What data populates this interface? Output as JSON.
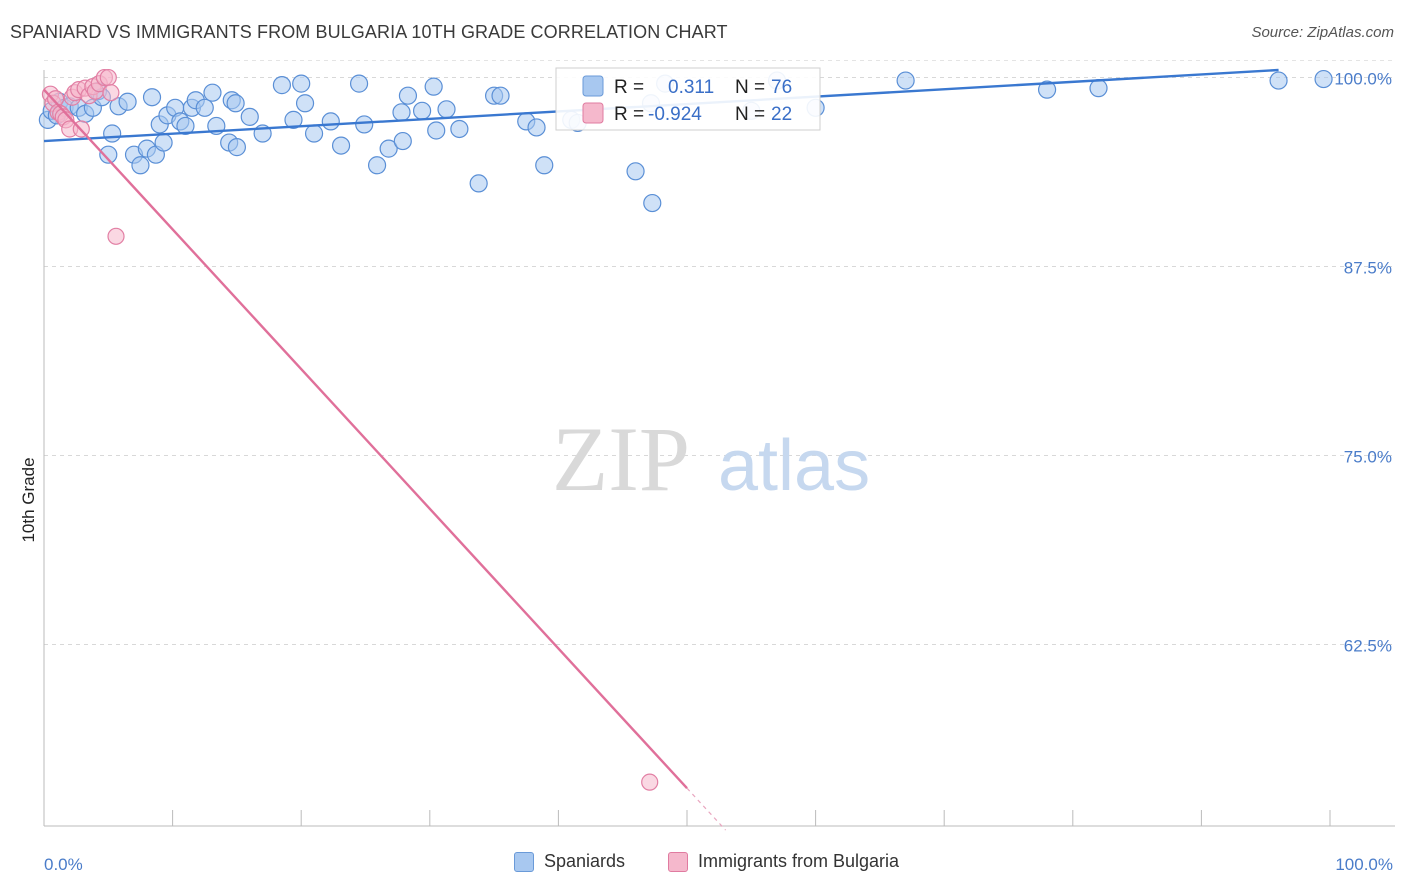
{
  "header": {
    "title": "SPANIARD VS IMMIGRANTS FROM BULGARIA 10TH GRADE CORRELATION CHART",
    "source": "Source: ZipAtlas.com"
  },
  "watermark": {
    "zip": "ZIP",
    "atlas": "atlas"
  },
  "legend_box": {
    "rows": [
      {
        "r_label": "R =",
        "r_value": "0.311",
        "n_label": "N =",
        "n_value": "76"
      },
      {
        "r_label": "R =",
        "r_value": "-0.924",
        "n_label": "N =",
        "n_value": "22"
      }
    ]
  },
  "bottom_legend": {
    "spaniards": "Spaniards",
    "bulgaria": "Immigrants from Bulgaria"
  },
  "chart_data": {
    "type": "scatter",
    "title": "SPANIARD VS IMMIGRANTS FROM BULGARIA 10TH GRADE CORRELATION CHART",
    "xlabel": "",
    "ylabel": "10th Grade",
    "xlim": [
      0,
      100
    ],
    "ylim": [
      50.5,
      100.5
    ],
    "x_tick_labels": [
      "0.0%",
      "100.0%"
    ],
    "y_ticks": [
      100,
      87.5,
      75,
      62.5
    ],
    "y_tick_labels": [
      "100.0%",
      "87.5%",
      "75.0%",
      "62.5%"
    ],
    "grid": true,
    "legend_position": "top-center",
    "colors": {
      "spaniards": "#3a78d0",
      "spaniards_fill": "#a8c8f0",
      "bulgaria": "#e0709a",
      "bulgaria_fill": "#f5b8cc"
    },
    "series": [
      {
        "name": "Spaniards",
        "r": 0.311,
        "n": 76,
        "trend": {
          "x": [
            0,
            96
          ],
          "y": [
            95.8,
            100.5
          ]
        },
        "points": [
          [
            0.3,
            97.2
          ],
          [
            0.6,
            97.8
          ],
          [
            1.0,
            97.5
          ],
          [
            1.2,
            98.4
          ],
          [
            1.6,
            98.0
          ],
          [
            2.0,
            98.1
          ],
          [
            2.7,
            98.0
          ],
          [
            3.2,
            97.6
          ],
          [
            3.8,
            98.0
          ],
          [
            4.2,
            99.1
          ],
          [
            4.5,
            98.7
          ],
          [
            5.0,
            94.9
          ],
          [
            5.3,
            96.3
          ],
          [
            5.8,
            98.1
          ],
          [
            6.5,
            98.4
          ],
          [
            7.0,
            94.9
          ],
          [
            7.5,
            94.2
          ],
          [
            8.0,
            95.3
          ],
          [
            8.4,
            98.7
          ],
          [
            8.7,
            94.9
          ],
          [
            9.0,
            96.9
          ],
          [
            9.3,
            95.7
          ],
          [
            9.6,
            97.5
          ],
          [
            10.2,
            98.0
          ],
          [
            10.6,
            97.1
          ],
          [
            11.0,
            96.8
          ],
          [
            11.5,
            98.0
          ],
          [
            11.8,
            98.5
          ],
          [
            12.5,
            98.0
          ],
          [
            13.1,
            99.0
          ],
          [
            13.4,
            96.8
          ],
          [
            14.4,
            95.7
          ],
          [
            14.6,
            98.5
          ],
          [
            14.9,
            98.3
          ],
          [
            15.0,
            95.4
          ],
          [
            16.0,
            97.4
          ],
          [
            17.0,
            96.3
          ],
          [
            18.5,
            99.5
          ],
          [
            19.4,
            97.2
          ],
          [
            20.0,
            99.6
          ],
          [
            20.3,
            98.3
          ],
          [
            21.0,
            96.3
          ],
          [
            22.3,
            97.1
          ],
          [
            23.1,
            95.5
          ],
          [
            24.5,
            99.6
          ],
          [
            24.9,
            96.9
          ],
          [
            25.9,
            94.2
          ],
          [
            26.8,
            95.3
          ],
          [
            27.8,
            97.7
          ],
          [
            27.9,
            95.8
          ],
          [
            28.3,
            98.8
          ],
          [
            29.4,
            97.8
          ],
          [
            30.3,
            99.4
          ],
          [
            30.5,
            96.5
          ],
          [
            31.3,
            97.9
          ],
          [
            32.3,
            96.6
          ],
          [
            33.8,
            93.0
          ],
          [
            35.0,
            98.8
          ],
          [
            35.5,
            98.8
          ],
          [
            37.5,
            97.1
          ],
          [
            38.3,
            96.7
          ],
          [
            38.9,
            94.2
          ],
          [
            41.0,
            97.2
          ],
          [
            41.5,
            97.0
          ],
          [
            46.0,
            93.8
          ],
          [
            47.2,
            98.3
          ],
          [
            47.3,
            91.7
          ],
          [
            48.3,
            99.6
          ],
          [
            55.0,
            97.8
          ],
          [
            57.0,
            99.8
          ],
          [
            60.0,
            98.0
          ],
          [
            67.0,
            99.8
          ],
          [
            78.0,
            99.2
          ],
          [
            82.0,
            99.3
          ],
          [
            96.0,
            99.8
          ],
          [
            99.5,
            99.9
          ]
        ]
      },
      {
        "name": "Immigrants from Bulgaria",
        "r": -0.924,
        "n": 22,
        "trend": {
          "x": [
            0,
            50
          ],
          "y": [
            99.2,
            53.0
          ]
        },
        "points": [
          [
            0.5,
            98.9
          ],
          [
            0.7,
            98.3
          ],
          [
            0.9,
            98.6
          ],
          [
            1.1,
            97.7
          ],
          [
            1.3,
            97.6
          ],
          [
            1.5,
            97.4
          ],
          [
            1.7,
            97.2
          ],
          [
            2.0,
            96.6
          ],
          [
            2.2,
            98.7
          ],
          [
            2.4,
            99.0
          ],
          [
            2.7,
            99.2
          ],
          [
            2.9,
            96.6
          ],
          [
            3.2,
            99.3
          ],
          [
            3.5,
            98.8
          ],
          [
            3.8,
            99.4
          ],
          [
            4.0,
            99.1
          ],
          [
            4.3,
            99.6
          ],
          [
            4.7,
            100.0
          ],
          [
            5.0,
            100.0
          ],
          [
            5.2,
            99.0
          ],
          [
            5.6,
            89.5
          ],
          [
            47.1,
            53.4
          ]
        ]
      }
    ]
  }
}
